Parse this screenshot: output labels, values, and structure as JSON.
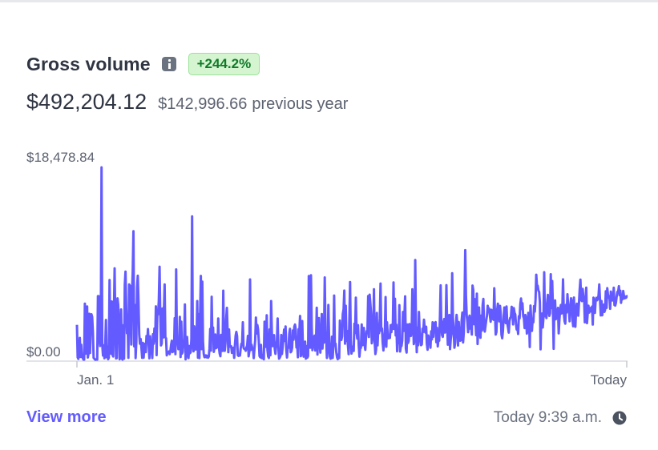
{
  "widget": {
    "title": "Gross volume",
    "change_badge": "+244.2%",
    "total": "$492,204.12",
    "previous_amount": "$142,996.66",
    "previous_label": "previous year",
    "view_more_label": "View more",
    "updated_text": "Today 9:39 a.m.",
    "icons": {
      "info": "info-icon",
      "clock": "clock-icon"
    }
  },
  "colors": {
    "current_series": "#635bff",
    "previous_series": "#c3c8d0",
    "badge_bg": "#d5f5d0",
    "badge_text": "#117a2a",
    "link": "#635bff"
  },
  "chart_data": {
    "type": "line",
    "ylim": [
      0,
      18478.84
    ],
    "y_tick_labels": [
      "$0.00",
      "$18,478.84"
    ],
    "x_tick_labels": [
      "Jan. 1",
      "Today"
    ],
    "grid": false,
    "legend": "none",
    "series": [
      {
        "values": [
          3380,
          290,
          140,
          1240,
          2140,
          330,
          1480,
          300,
          260,
          70,
          70,
          5400,
          630,
          1370,
          5140,
          270,
          670,
          4440,
          700,
          3010,
          4390,
          4140,
          2730,
          240,
          160,
          70,
          50,
          100,
          70,
          6120,
          6120,
          2030,
          1370,
          3450,
          18400,
          1480,
          460,
          1430,
          200,
          1460,
          3850,
          300,
          1320,
          110,
          250,
          7650,
          2150,
          640,
          5610,
          570,
          370,
          4170,
          8770,
          3740,
          180,
          210,
          5910,
          5290,
          3710,
          100,
          400,
          4850,
          170,
          70,
          3350,
          160,
          7200,
          8450,
          5000,
          2590,
          3490,
          240,
          7230,
          7120,
          4430,
          1510,
          6620,
          8440,
          12310,
          1340,
          5280,
          210,
          1750,
          6960,
          8060,
          5670,
          2480,
          1590,
          2040,
          1150,
          240,
          1660,
          250,
          1280,
          1570,
          780,
          2320,
          1800,
          2980,
          1430,
          200,
          2290,
          1280,
          1080,
          220,
          2490,
          1590,
          3030,
          1830,
          5150,
          500,
          4630,
          4380,
          5590,
          8930,
          4190,
          1420,
          1610,
          4940,
          2180,
          4720,
          7230,
          2200,
          2090,
          470,
          740,
          750,
          850,
          590,
          880,
          1500,
          1870,
          790,
          1050,
          860,
          4020,
          590,
          8670,
          2020,
          1780,
          1060,
          1670,
          4140,
          310,
          3680,
          630,
          800,
          1840,
          1950,
          5330,
          100,
          530,
          2220,
          1110,
          220,
          1370,
          680,
          770,
          2020,
          13720,
          1470,
          860,
          3240,
          1940,
          1030,
          1540,
          5650,
          260,
          4400,
          220,
          4530,
          8050,
          1070,
          7500,
          1800,
          620,
          300,
          310,
          470,
          290,
          420,
          250,
          360,
          1130,
          2990,
          930,
          6060,
          2240,
          3120,
          810,
          1420,
          2470,
          1150,
          1980,
          1250,
          3990,
          1190,
          650,
          390,
          2420,
          2160,
          900,
          6640,
          1150,
          900,
          1650,
          3950,
          5000,
          2750,
          780,
          2940,
          1410,
          1280,
          1340,
          710,
          1150,
          1200,
          240,
          1460,
          2350,
          2710,
          2320,
          490,
          420,
          500,
          450,
          1130,
          1580,
          1660,
          3630,
          1190,
          1080,
          1090,
          910,
          1240,
          1400,
          2330,
          380,
          850,
          7710,
          990,
          1490,
          1140,
          1050,
          210,
          1120,
          1900,
          4080,
          2560,
          3370,
          2950,
          1850,
          410,
          290,
          1470,
          210,
          500,
          180,
          100,
          3690,
          1770,
          1280,
          4290,
          990,
          370,
          220,
          2950,
          490,
          5650,
          2710,
          1350,
          2360,
          2400,
          1090,
          620,
          1620,
          1790,
          3990,
          1200,
          160,
          270,
          420,
          2410,
          600,
          1290,
          2070,
          2930,
          1850,
          3230,
          1030,
          270,
          1150,
          1190,
          2530,
          3010,
          770,
          860,
          1210,
          2850,
          1960,
          3200,
          3410,
          2940,
          1220,
          1450,
          300,
          2960,
          2710,
          4230,
          400,
          580,
          3740,
          1220,
          350,
          820,
          1790,
          160,
          1360,
          250,
          420,
          8040,
          4760,
          1210,
          8110,
          3390,
          970,
          1420,
          2160,
          2350,
          940,
          1600,
          5010,
          560,
          3100,
          4030,
          1580,
          730,
          1980,
          4410,
          1130,
          3650,
          1690,
          7900,
          2750,
          2110,
          230,
          1150,
          5280,
          2210,
          390,
          150,
          190,
          2250,
          230,
          1490,
          6180,
          1460,
          1590,
          760,
          290,
          110,
          550,
          210,
          3790,
          2010,
          1940,
          2280,
          4410,
          4870,
          6650,
          1590,
          5200,
          1850,
          2810,
          1460,
          590,
          3930,
          7460,
          1990,
          650,
          1180,
          1300,
          890,
          3500,
          2630,
          5970,
          2700,
          2070,
          3350,
          1430,
          350,
          1200,
          1180,
          3410,
          1440,
          2620,
          3090,
          1510,
          1000,
          2210,
          2770,
          2880,
          6130,
          2230,
          6260,
          5430,
          4490,
          1630,
          2070,
          2530,
          6770,
          1700,
          600,
          1040,
          4510,
          1430,
          3140,
          2590,
          4030,
          7320,
          2820,
          3040,
          1650,
          950,
          1790,
          2740,
          6030,
          1300,
          3630,
          2350,
          2100,
          2160,
          2140,
          3350,
          2690,
          3400,
          3010,
          7420,
          2990,
          5870,
          2380,
          3390,
          860,
          2580,
          1640,
          5260,
          840,
          1310,
          1370,
          1920,
          4610,
          2800,
          4230,
          6100,
          1130,
          740,
          3420,
          1650,
          1850,
          3460,
          2550,
          2320,
          2690,
          6780,
          3830,
          1540,
          1950,
          9570,
          3330,
          780,
          3110,
          1440,
          4610,
          2750,
          2080,
          1440,
          1530,
          3010,
          2700,
          3870,
          3010,
          2650,
          3210,
          1550,
          1010,
          2370,
          1930,
          2070,
          1210,
          2770,
          1990,
          3630,
          2250,
          3540,
          3100,
          3650,
          1730,
          3090,
          1330,
          2040,
          1870,
          4080,
          7150,
          3200,
          2400,
          2240,
          3650,
          3940,
          2650,
          3240,
          7170,
          3280,
          1500,
          3270,
          4320,
          1070,
          2000,
          2560,
          8310,
          4140,
          2700,
          1200,
          1670,
          3250,
          4330,
          3490,
          1420,
          3640,
          2080,
          1870,
          1910,
          3790,
          4550,
          1710,
          2660,
          5610,
          10510,
          6210,
          4290,
          3660,
          2680,
          3900,
          4260,
          3030,
          3430,
          2460,
          7130,
          6700,
          3440,
          5840,
          3810,
          2400,
          6350,
          1560,
          3180,
          5040,
          2850,
          2150,
          4270,
          2840,
          5280,
          5860,
          3090,
          2740,
          3290,
          3830,
          4260,
          5200,
          4830,
          4930,
          4250,
          3680,
          4820,
          4580,
          3940,
          3870,
          6870,
          4500,
          2460,
          2700,
          4790,
          5400,
          4540,
          3710,
          5190,
          4350,
          2450,
          2100,
          2780,
          4140,
          5040,
          4050,
          3550,
          5140,
          3550,
          3150,
          2640,
          3750,
          4040,
          4120,
          5110,
          4940,
          3430,
          4980,
          4530,
          4390,
          3460,
          2930,
          3140,
          2510,
          4200,
          3990,
          5340,
          5900,
          4900,
          5440,
          4210,
          4010,
          3080,
          4320,
          4030,
          2550,
          3030,
          4520,
          4040,
          1270,
          5220,
          3900,
          2810,
          3950,
          3630,
          5180,
          4640,
          5790,
          8160,
          7120,
          7120,
          6650,
          6520,
          5550,
          1050,
          4440,
          4460,
          3130,
          4090,
          8400,
          4210,
          5060,
          4030,
          5490,
          6240,
          4780,
          4240,
          4500,
          8210,
          4990,
          7560,
          5050,
          1100,
          5440,
          5710,
          3920,
          4520,
          4480,
          5010,
          2570,
          3900,
          4810,
          5280,
          4470,
          4820,
          7720,
          4510,
          3740,
          3500,
          5290,
          4560,
          6300,
          5210,
          5180,
          3730,
          5100,
          5920,
          5620,
          3870,
          3250,
          5990,
          3850,
          3200,
          4820,
          5400,
          5010,
          4250,
          5460,
          6770,
          7700,
          5740,
          5640,
          6810,
          5980,
          5920,
          3630,
          5910,
          6930,
          3550,
          4480,
          5210,
          4550,
          4880,
          4990,
          4650,
          5120,
          3410,
          5980,
          5350,
          4520,
          5710,
          5960,
          5730,
          5840,
          6170,
          7240,
          5840,
          4280,
          5650,
          4290,
          5070,
          5310,
          4620,
          4820,
          6580,
          5000,
          6880,
          6230,
          5970,
          6100,
          4920,
          6560,
          5830,
          5710,
          5800,
          6920,
          5260,
          5220,
          5490,
          6070,
          6530,
          6480,
          7070,
          6200,
          6640,
          5480,
          6120,
          5820,
          6610,
          6170,
          5900,
          6080,
          5960,
          6120,
          6100
        ]
      }
    ]
  }
}
